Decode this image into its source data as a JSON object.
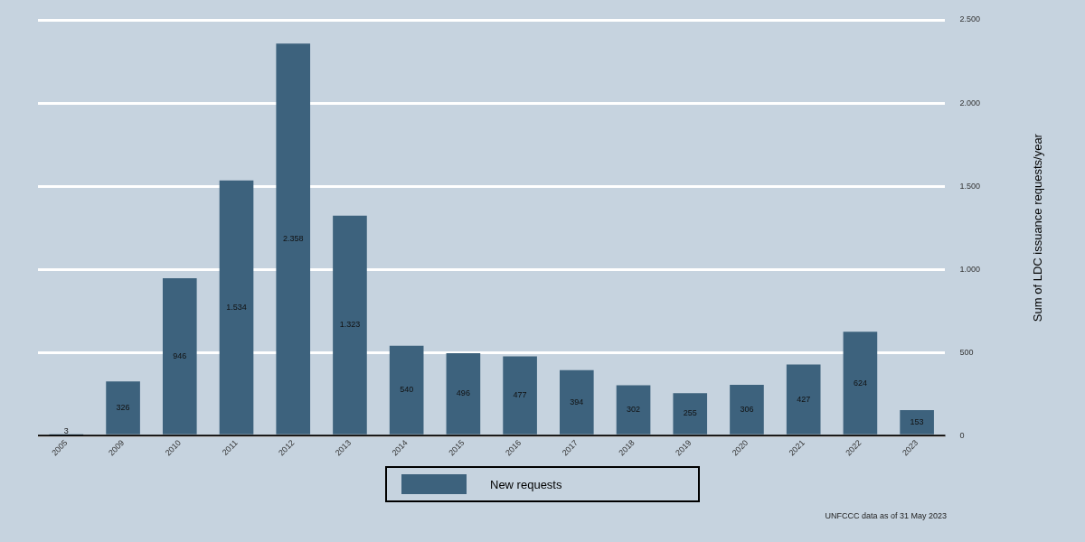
{
  "chart_data": {
    "type": "bar",
    "ylabel": "Sum of LDC issuance requests/year",
    "categories": [
      "2005",
      "2009",
      "2010",
      "2011",
      "2012",
      "2013",
      "2014",
      "2015",
      "2016",
      "2017",
      "2018",
      "2019",
      "2020",
      "2021",
      "2022",
      "2023"
    ],
    "series": [
      {
        "name": "New requests",
        "color": "#3d627d",
        "values": [
          3,
          326,
          946,
          1534,
          2358,
          1323,
          540,
          496,
          477,
          394,
          302,
          255,
          306,
          427,
          624,
          153
        ],
        "value_labels": [
          "3",
          "326",
          "946",
          "1.534",
          "2.358",
          "1.323",
          "540",
          "496",
          "477",
          "394",
          "302",
          "255",
          "306",
          "427",
          "624",
          "153"
        ]
      }
    ],
    "ylim": [
      0,
      2500
    ],
    "yticks": [
      0,
      {
        "value": 500,
        "label": "500"
      },
      {
        "value": 1000,
        "label": "1.000"
      },
      {
        "value": 1500,
        "label": "1.500"
      },
      {
        "value": 2000,
        "label": "2.000"
      },
      {
        "value": 2500,
        "label": "2.500"
      }
    ],
    "grid": "y",
    "legend": "bottom",
    "annotations": [
      "UNFCCC data as of 31 May 2023"
    ]
  }
}
